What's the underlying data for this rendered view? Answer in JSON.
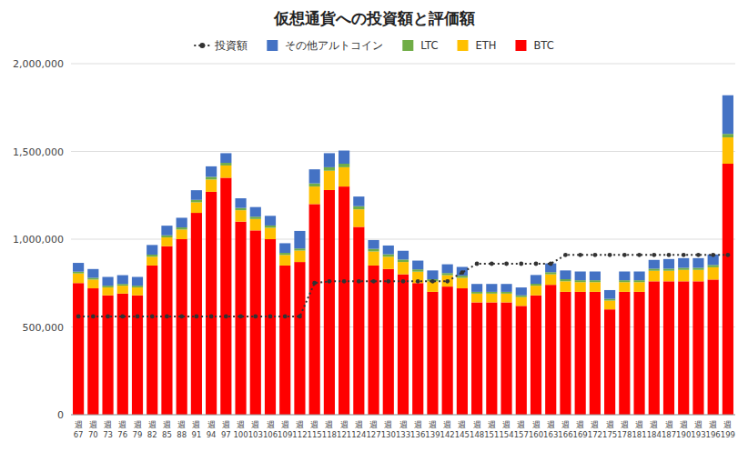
{
  "chart_data": {
    "type": "bar",
    "title": "仮想通貨への投資額と評価額",
    "stacked": true,
    "grid": true,
    "legend": "top",
    "categories": [
      "週\n67",
      "週\n70",
      "週\n73",
      "週\n76",
      "週\n79",
      "週\n82",
      "週\n85",
      "週\n88",
      "週\n91",
      "週\n94",
      "週\n97",
      "週\n100",
      "週\n103",
      "週\n106",
      "週\n109",
      "週\n112",
      "週\n115",
      "週\n118",
      "週\n121",
      "週\n124",
      "週\n127",
      "週\n130",
      "週\n133",
      "週\n136",
      "週\n139",
      "週\n142",
      "週\n145",
      "週\n148",
      "週\n151",
      "週\n154",
      "週\n157",
      "週\n160",
      "週\n163",
      "週\n166",
      "週\n169",
      "週\n172",
      "週\n175",
      "週\n178",
      "週\n181",
      "週\n184",
      "週\n187",
      "週\n190",
      "週\n193",
      "週\n196",
      "週\n199"
    ],
    "ylim": [
      0,
      2000000
    ],
    "yticks": [
      0,
      {
        "value": 500000,
        "label": "500,000"
      },
      {
        "value": 1000000,
        "label": "1,000,000"
      },
      {
        "value": 1500000,
        "label": "1,500,000"
      },
      {
        "value": 2000000,
        "label": "2,000,000"
      }
    ],
    "series": [
      {
        "name": "BTC",
        "type": "bar",
        "color": "#FF0000",
        "values": [
          750000,
          720000,
          680000,
          690000,
          680000,
          850000,
          960000,
          1000000,
          1150000,
          1270000,
          1350000,
          1100000,
          1050000,
          1000000,
          850000,
          870000,
          1200000,
          1280000,
          1300000,
          1070000,
          850000,
          830000,
          800000,
          750000,
          700000,
          730000,
          720000,
          640000,
          640000,
          640000,
          620000,
          680000,
          740000,
          700000,
          700000,
          700000,
          600000,
          700000,
          700000,
          760000,
          760000,
          760000,
          760000,
          770000,
          1430000
        ]
      },
      {
        "name": "ETH",
        "type": "bar",
        "color": "#FFC000",
        "values": [
          55000,
          50000,
          45000,
          45000,
          45000,
          50000,
          50000,
          55000,
          60000,
          70000,
          70000,
          65000,
          65000,
          65000,
          60000,
          65000,
          100000,
          110000,
          110000,
          100000,
          80000,
          70000,
          70000,
          65000,
          60000,
          65000,
          60000,
          50000,
          50000,
          50000,
          50000,
          55000,
          60000,
          60000,
          55000,
          55000,
          50000,
          55000,
          55000,
          60000,
          60000,
          65000,
          65000,
          70000,
          150000
        ]
      },
      {
        "name": "LTC",
        "type": "bar",
        "color": "#70AD47",
        "values": [
          10000,
          10000,
          10000,
          10000,
          10000,
          12000,
          12000,
          12000,
          14000,
          15000,
          15000,
          13000,
          13000,
          13000,
          12000,
          12000,
          18000,
          20000,
          20000,
          18000,
          15000,
          14000,
          14000,
          13000,
          12000,
          12000,
          12000,
          10000,
          10000,
          10000,
          10000,
          11000,
          12000,
          12000,
          11000,
          11000,
          10000,
          11000,
          11000,
          12000,
          12000,
          12000,
          12000,
          13000,
          20000
        ]
      },
      {
        "name": "その他アルトコイン",
        "type": "bar",
        "color": "#4472C4",
        "values": [
          50000,
          50000,
          50000,
          50000,
          50000,
          55000,
          55000,
          55000,
          55000,
          60000,
          55000,
          55000,
          55000,
          55000,
          55000,
          100000,
          80000,
          80000,
          75000,
          55000,
          50000,
          50000,
          50000,
          50000,
          50000,
          50000,
          50000,
          45000,
          45000,
          45000,
          45000,
          50000,
          50000,
          50000,
          50000,
          50000,
          50000,
          50000,
          50000,
          50000,
          55000,
          55000,
          55000,
          60000,
          220000
        ]
      },
      {
        "name": "投資額",
        "type": "line",
        "color": "#333333",
        "line_style": "dotted",
        "marker": "circle",
        "values": [
          560000,
          560000,
          560000,
          560000,
          560000,
          560000,
          560000,
          560000,
          560000,
          560000,
          560000,
          560000,
          560000,
          560000,
          560000,
          560000,
          750000,
          760000,
          760000,
          760000,
          760000,
          760000,
          760000,
          760000,
          760000,
          760000,
          810000,
          860000,
          860000,
          860000,
          860000,
          860000,
          860000,
          910000,
          910000,
          910000,
          910000,
          910000,
          910000,
          910000,
          910000,
          910000,
          910000,
          910000,
          910000
        ]
      }
    ]
  }
}
